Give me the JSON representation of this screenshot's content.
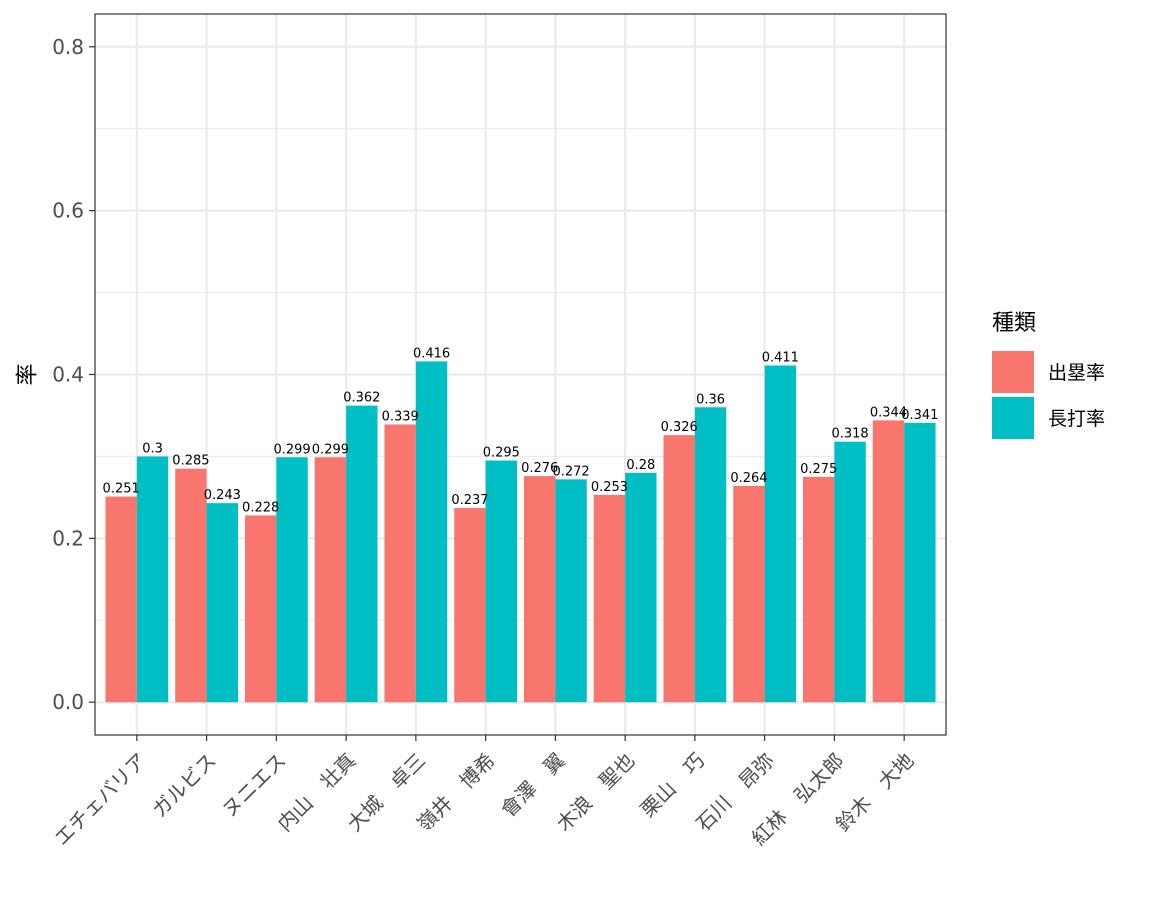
{
  "chart_data": {
    "type": "bar",
    "title": "",
    "xlabel": "",
    "ylabel": "率",
    "ylim": [
      -0.04,
      0.84
    ],
    "yticks": [
      "0.0",
      "0.2",
      "0.4",
      "0.6",
      "0.8"
    ],
    "categories": [
      "エチェバリア",
      "ガルビス",
      "ヌニエス",
      "内山　壮真",
      "大城　卓三",
      "嶺井　博希",
      "會澤　翼",
      "木浪　聖也",
      "栗山　巧",
      "石川　昂弥",
      "紅林　弘太郎",
      "鈴木　大地"
    ],
    "series": [
      {
        "name": "出塁率",
        "color": "#F8766D",
        "values": [
          0.251,
          0.285,
          0.228,
          0.299,
          0.339,
          0.237,
          0.276,
          0.253,
          0.326,
          0.264,
          0.275,
          0.344
        ],
        "labels": [
          "0.251",
          "0.285",
          "0.228",
          "0.299",
          "0.339",
          "0.237",
          "0.276",
          "0.253",
          "0.326",
          "0.264",
          "0.275",
          "0.344"
        ]
      },
      {
        "name": "長打率",
        "color": "#00BFC4",
        "values": [
          0.3,
          0.243,
          0.299,
          0.362,
          0.416,
          0.295,
          0.272,
          0.28,
          0.36,
          0.411,
          0.318,
          0.341
        ],
        "labels": [
          "0.3",
          "0.243",
          "0.299",
          "0.362",
          "0.416",
          "0.295",
          "0.272",
          "0.28",
          "0.36",
          "0.411",
          "0.318",
          "0.341"
        ]
      }
    ],
    "legend": {
      "title": "種類",
      "position": "right"
    },
    "grid": true
  }
}
